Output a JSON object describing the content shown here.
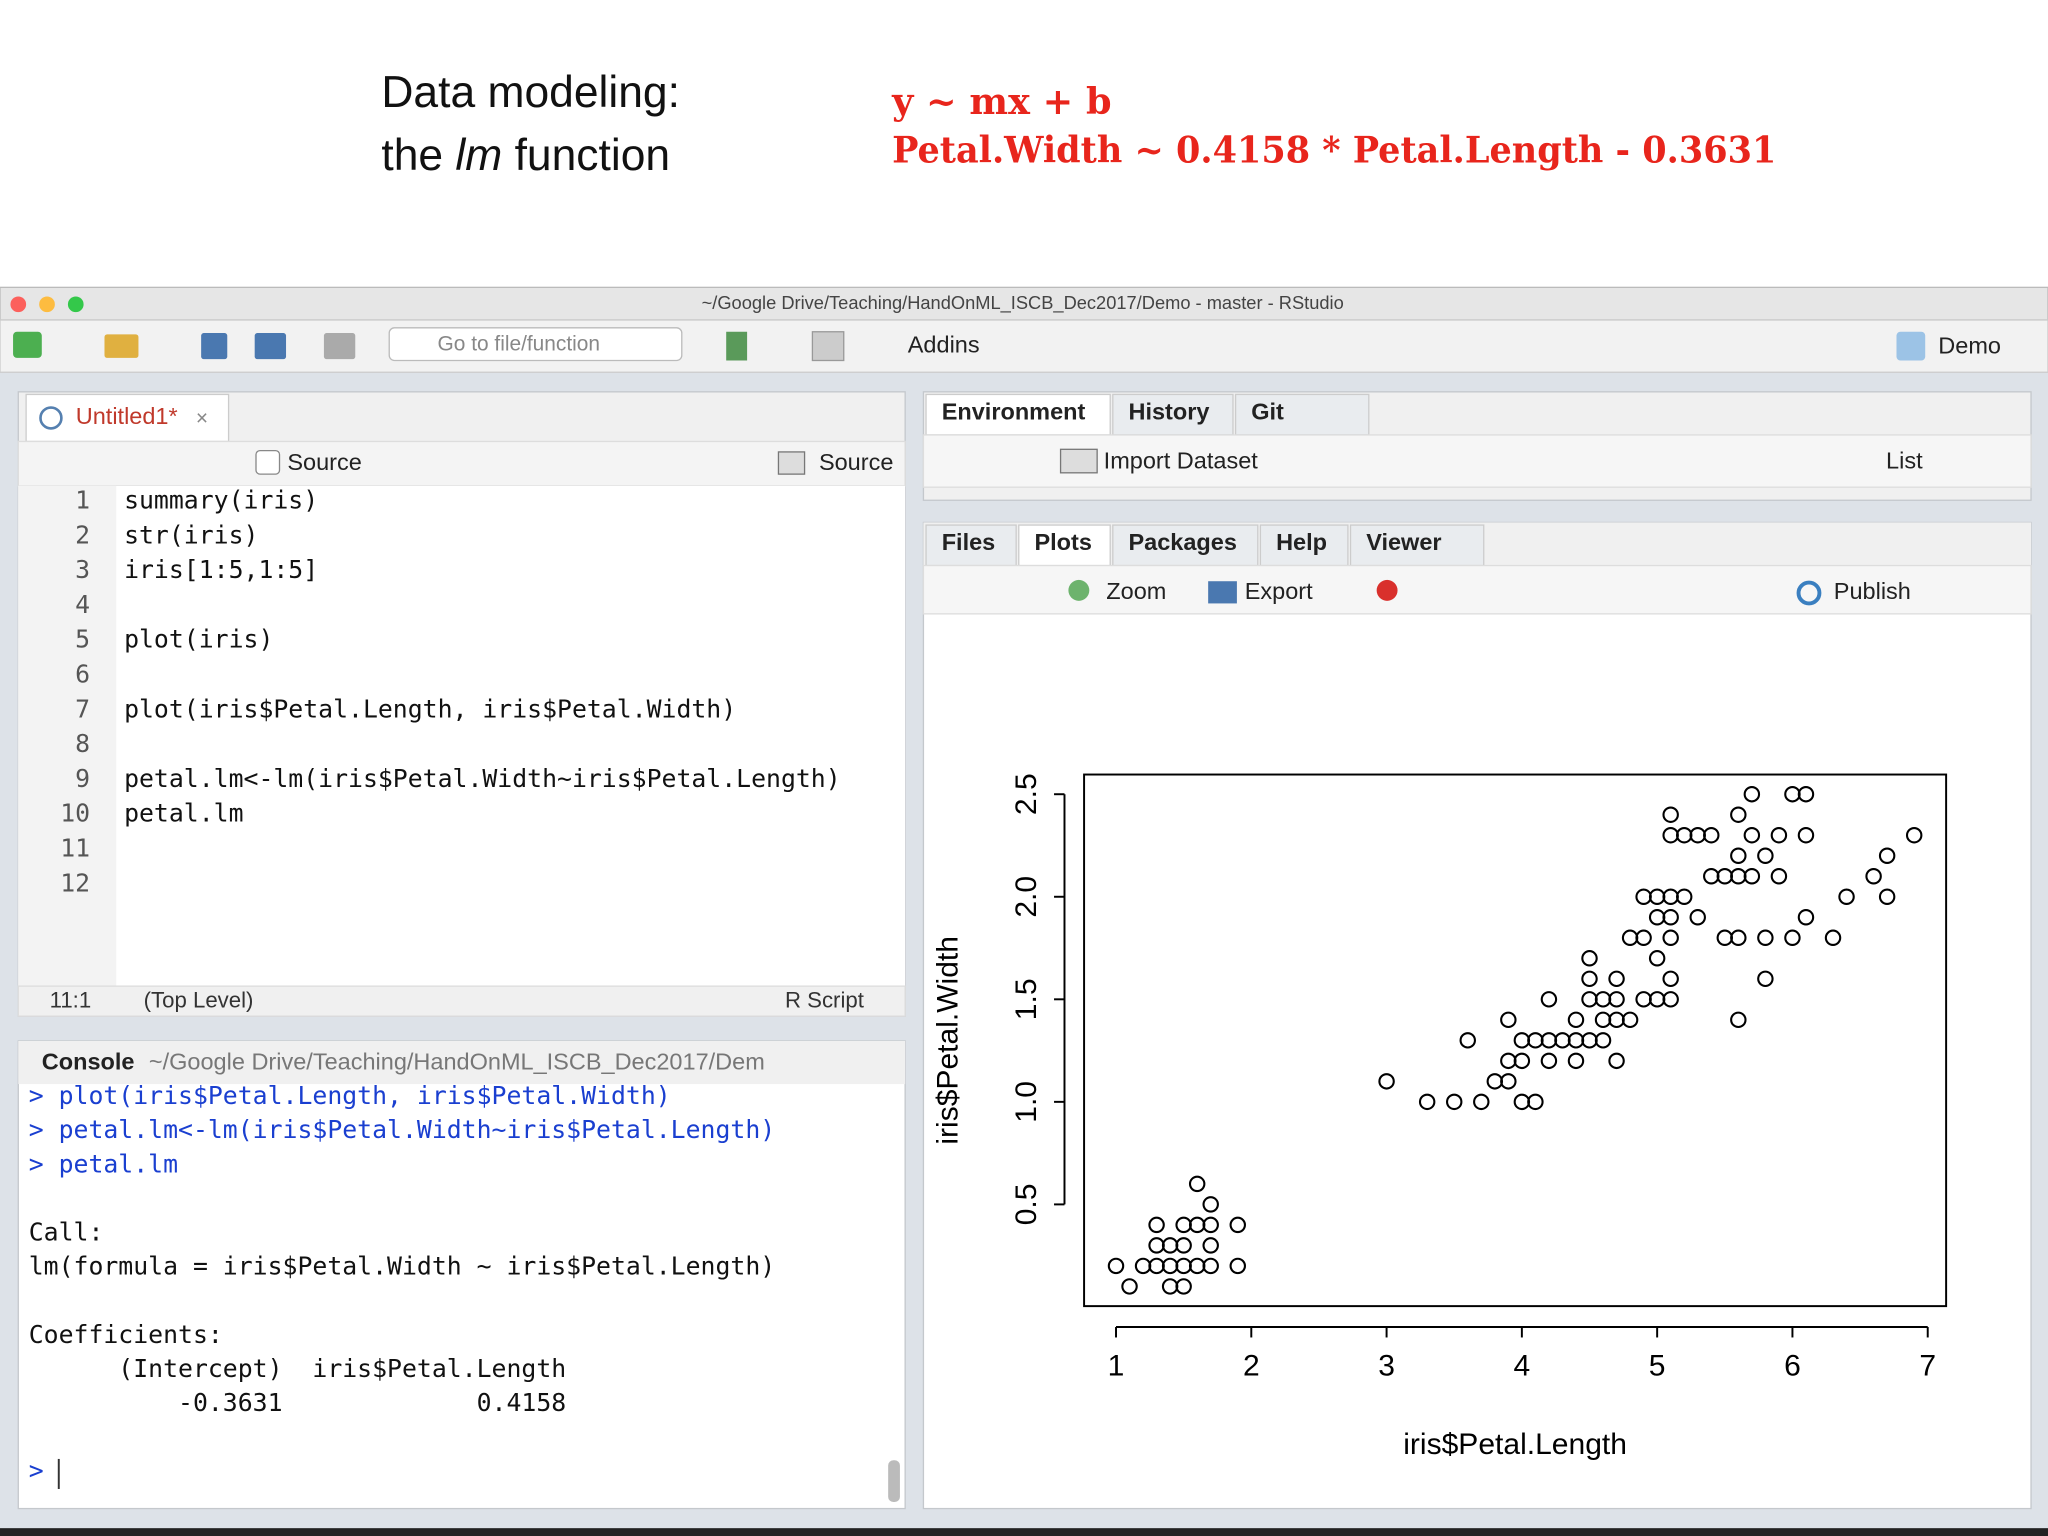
{
  "slide": {
    "title": {
      "line1": "Data modeling:",
      "line2": [
        "the ",
        "lm",
        " function"
      ]
    },
    "equations": [
      "y ~ mx + b",
      "Petal.Width ~ 0.4158 * Petal.Length - 0.3631"
    ]
  },
  "window": {
    "title": "~/Google Drive/Teaching/HandOnML_ISCB_Dec2017/Demo - master - RStudio",
    "goto_placeholder": "Go to file/function",
    "addins": "Addins",
    "project": "Demo"
  },
  "editor": {
    "tab": "Untitled1*",
    "source_checkbox": "Source",
    "source_button": "Source",
    "line_numbers": [
      1,
      2,
      3,
      4,
      5,
      6,
      7,
      8,
      9,
      10,
      11,
      12
    ],
    "code": [
      "summary(iris)",
      "str(iris)",
      "iris[1:5,1:5]",
      null,
      "plot(iris)",
      null,
      "plot(iris$Petal.Length, iris$Petal.Width)",
      null,
      "petal.lm<-lm(iris$Petal.Width~iris$Petal.Length)",
      "petal.lm",
      null,
      null
    ],
    "status": {
      "position": "11:1",
      "scope": "(Top Level)",
      "file_type": "R Script"
    }
  },
  "console": {
    "title": "Console",
    "path": "~/Google Drive/Teaching/HandOnML_ISCB_Dec2017/Dem",
    "commands": [
      "> plot(iris$Petal.Length, iris$Petal.Width)",
      "> petal.lm<-lm(iris$Petal.Width~iris$Petal.Length)",
      "> petal.lm"
    ],
    "output": [
      "Call:",
      "lm(formula = iris$Petal.Width ~ iris$Petal.Length)",
      "Coefficients:",
      "      (Intercept)  iris$Petal.Length",
      "          -0.3631             0.4158"
    ],
    "prompt": ">"
  },
  "environment": {
    "tabs": [
      "Environment",
      "History",
      "Git"
    ],
    "import": "Import Dataset",
    "view": "List"
  },
  "viewer": {
    "tabs": [
      "Files",
      "Plots",
      "Packages",
      "Help",
      "Viewer"
    ],
    "zoom": "Zoom",
    "export": "Export",
    "publish": "Publish"
  },
  "chart_data": {
    "type": "scatter",
    "x_label": "iris$Petal.Length",
    "y_label": "iris$Petal.Width",
    "color": "#000000",
    "xlim": [
      0.764,
      7.136
    ],
    "ylim": [
      0.004,
      2.596
    ],
    "xticks": [
      1,
      2,
      3,
      4,
      5,
      6,
      7
    ],
    "yticks": [
      0.5,
      {
        "value": 1,
        "label": "1.0"
      },
      1.5,
      {
        "value": 2,
        "label": "2.0"
      },
      2.5
    ],
    "x": [
      1.1,
      1.4,
      1.5,
      1.0,
      1.2,
      1.3,
      1.4,
      1.5,
      1.6,
      1.7,
      1.9,
      1.3,
      1.4,
      1.5,
      1.7,
      1.3,
      1.5,
      1.6,
      1.7,
      1.9,
      1.7,
      1.6,
      3.3,
      3.5,
      3.7,
      4.0,
      4.1,
      3.0,
      3.8,
      3.9,
      3.9,
      4.0,
      4.2,
      4.4,
      4.7,
      3.6,
      4.0,
      4.1,
      4.2,
      4.3,
      4.4,
      4.5,
      4.6,
      3.9,
      4.4,
      4.6,
      4.7,
      4.8,
      5.6,
      4.2,
      4.5,
      4.6,
      4.7,
      4.9,
      5.0,
      5.1,
      4.5,
      4.7,
      5.1,
      5.8,
      4.5,
      5.0,
      4.8,
      4.9,
      5.1,
      5.5,
      5.6,
      5.8,
      6.0,
      6.3,
      5.0,
      5.1,
      5.3,
      6.1,
      4.9,
      5.0,
      5.1,
      5.2,
      6.4,
      6.7,
      5.4,
      5.5,
      5.6,
      5.7,
      5.9,
      6.6,
      5.6,
      5.8,
      6.7,
      5.1,
      5.2,
      5.3,
      5.4,
      5.7,
      5.9,
      6.1,
      6.9,
      5.1,
      5.6,
      5.7,
      6.0,
      6.1
    ],
    "values": [
      0.1,
      0.1,
      0.1,
      0.2,
      0.2,
      0.2,
      0.2,
      0.2,
      0.2,
      0.2,
      0.2,
      0.3,
      0.3,
      0.3,
      0.3,
      0.4,
      0.4,
      0.4,
      0.4,
      0.4,
      0.5,
      0.6,
      1.0,
      1.0,
      1.0,
      1.0,
      1.0,
      1.1,
      1.1,
      1.1,
      1.2,
      1.2,
      1.2,
      1.2,
      1.2,
      1.3,
      1.3,
      1.3,
      1.3,
      1.3,
      1.3,
      1.3,
      1.3,
      1.4,
      1.4,
      1.4,
      1.4,
      1.4,
      1.4,
      1.5,
      1.5,
      1.5,
      1.5,
      1.5,
      1.5,
      1.5,
      1.6,
      1.6,
      1.6,
      1.6,
      1.7,
      1.7,
      1.8,
      1.8,
      1.8,
      1.8,
      1.8,
      1.8,
      1.8,
      1.8,
      1.9,
      1.9,
      1.9,
      1.9,
      2.0,
      2.0,
      2.0,
      2.0,
      2.0,
      2.0,
      2.1,
      2.1,
      2.1,
      2.1,
      2.1,
      2.1,
      2.2,
      2.2,
      2.2,
      2.3,
      2.3,
      2.3,
      2.3,
      2.3,
      2.3,
      2.3,
      2.3,
      2.4,
      2.4,
      2.5,
      2.5,
      2.5
    ]
  }
}
